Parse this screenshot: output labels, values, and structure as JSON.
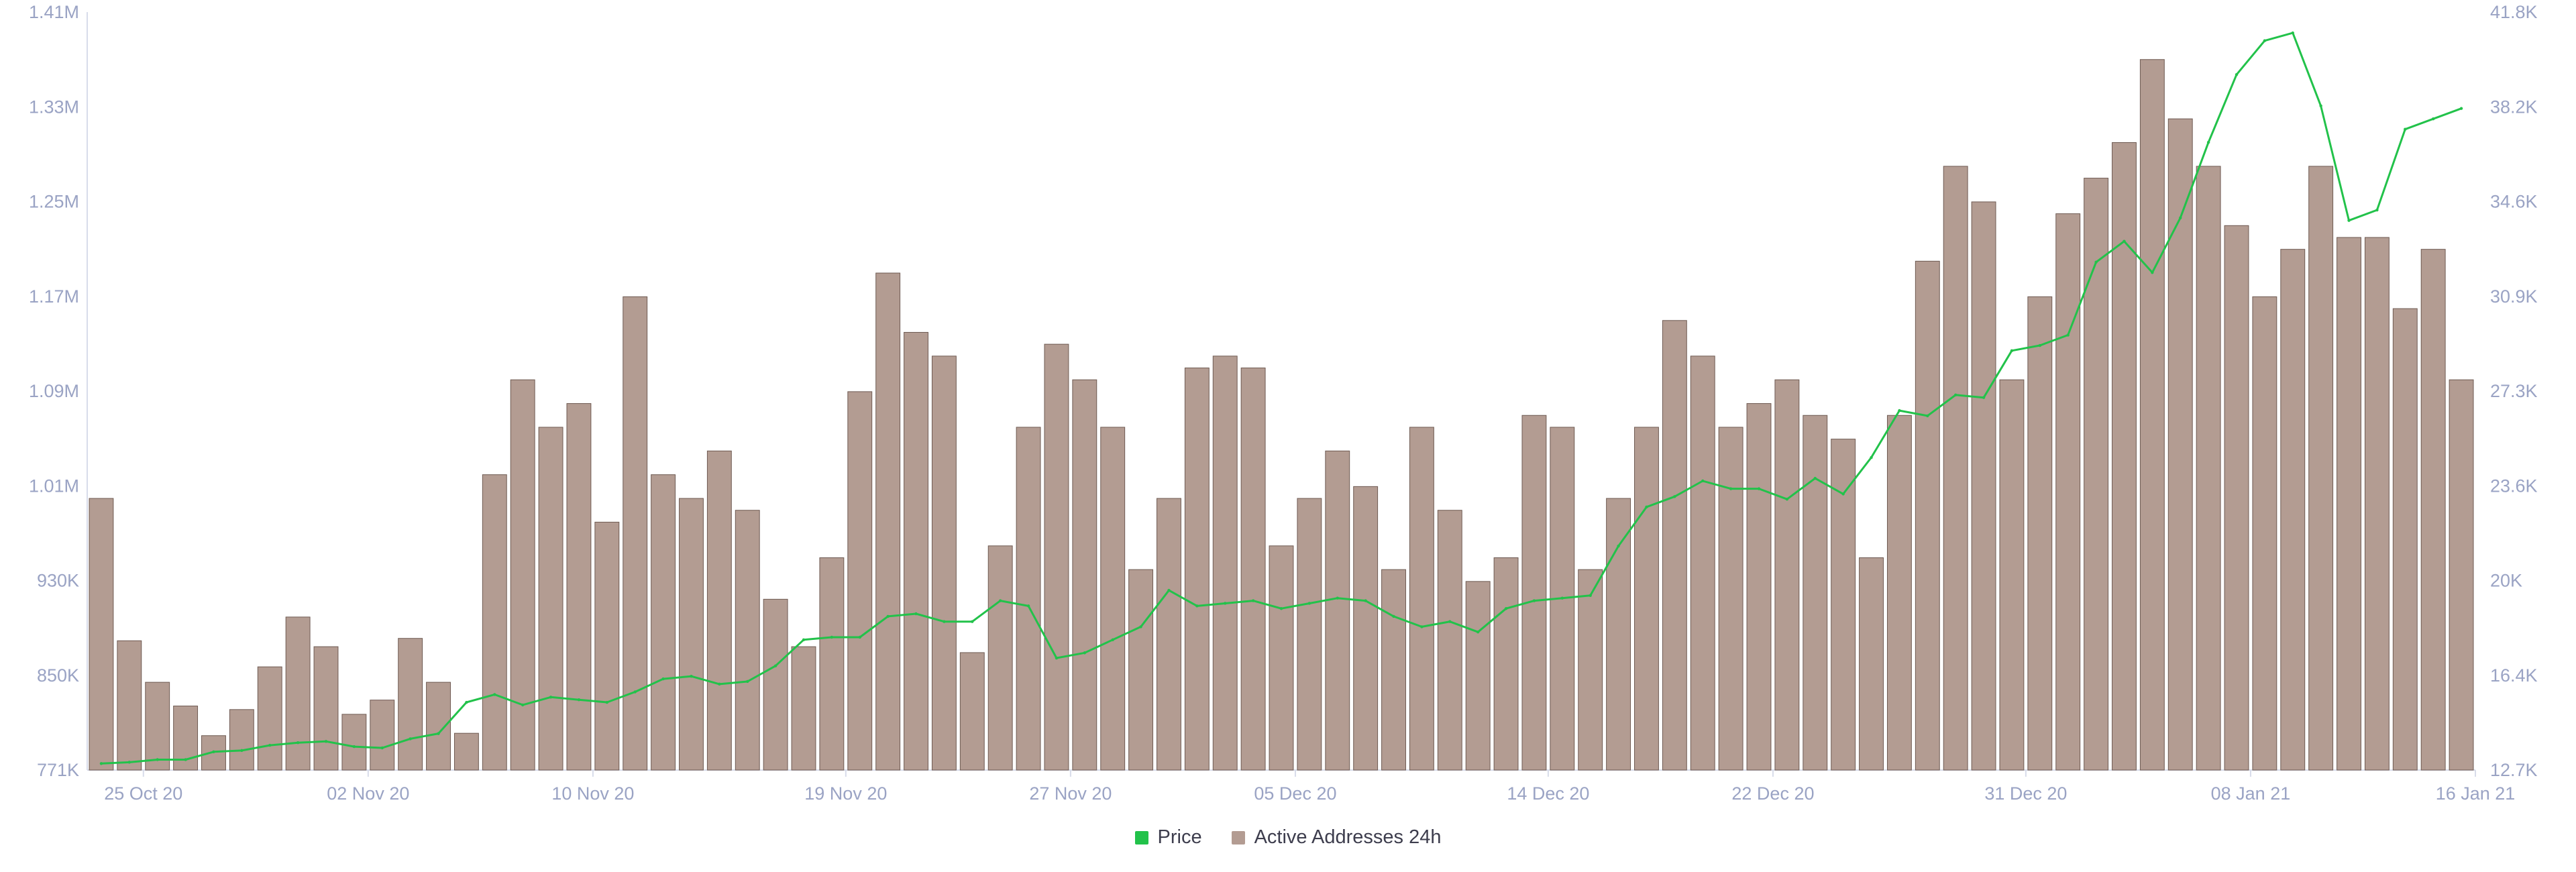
{
  "colors": {
    "price": "#22c24a",
    "active_addresses": "#b39c92",
    "bar_edge": "#6e5a52",
    "axis_text": "#9aa3c4",
    "axis_line": "#d8dcea"
  },
  "legend": {
    "price_label": "Price",
    "active_label": "Active Addresses 24h"
  },
  "chart_data": {
    "type": "bar",
    "title": "",
    "legend_position": "bottom-center",
    "grid": false,
    "x_axis": {
      "range": [
        "2020-10-23",
        "2021-01-16"
      ],
      "ticks": [
        "25 Oct 20",
        "02 Nov 20",
        "10 Nov 20",
        "19 Nov 20",
        "27 Nov 20",
        "05 Dec 20",
        "14 Dec 20",
        "22 Dec 20",
        "31 Dec 20",
        "08 Jan 21",
        "16 Jan 21"
      ]
    },
    "y_left": {
      "label": "",
      "series": "Active Addresses 24h",
      "range": [
        771000,
        1410000
      ],
      "ticks": [
        "1.41M",
        "1.33M",
        "1.25M",
        "1.17M",
        "1.09M",
        "1.01M",
        "930K",
        "850K",
        "771K"
      ]
    },
    "y_right": {
      "label": "",
      "series": "Price",
      "range": [
        12700,
        41800
      ],
      "ticks": [
        "41.8K",
        "38.2K",
        "34.6K",
        "30.9K",
        "27.3K",
        "23.6K",
        "20K",
        "16.4K",
        "12.7K"
      ]
    },
    "series": [
      {
        "name": "Active Addresses 24h",
        "type": "bar",
        "axis": "left",
        "dates": [
          "2020-10-23",
          "2020-10-24",
          "2020-10-25",
          "2020-10-26",
          "2020-10-27",
          "2020-10-28",
          "2020-10-29",
          "2020-10-30",
          "2020-10-31",
          "2020-11-01",
          "2020-11-02",
          "2020-11-03",
          "2020-11-04",
          "2020-11-05",
          "2020-11-06",
          "2020-11-07",
          "2020-11-08",
          "2020-11-09",
          "2020-11-10",
          "2020-11-11",
          "2020-11-12",
          "2020-11-13",
          "2020-11-14",
          "2020-11-15",
          "2020-11-16",
          "2020-11-17",
          "2020-11-18",
          "2020-11-19",
          "2020-11-20",
          "2020-11-21",
          "2020-11-22",
          "2020-11-23",
          "2020-11-24",
          "2020-11-25",
          "2020-11-26",
          "2020-11-27",
          "2020-11-28",
          "2020-11-29",
          "2020-11-30",
          "2020-12-01",
          "2020-12-02",
          "2020-12-03",
          "2020-12-04",
          "2020-12-05",
          "2020-12-06",
          "2020-12-07",
          "2020-12-08",
          "2020-12-09",
          "2020-12-10",
          "2020-12-11",
          "2020-12-12",
          "2020-12-13",
          "2020-12-14",
          "2020-12-15",
          "2020-12-16",
          "2020-12-17",
          "2020-12-18",
          "2020-12-19",
          "2020-12-20",
          "2020-12-21",
          "2020-12-22",
          "2020-12-23",
          "2020-12-24",
          "2020-12-25",
          "2020-12-26",
          "2020-12-27",
          "2020-12-28",
          "2020-12-29",
          "2020-12-30",
          "2020-12-31",
          "2021-01-01",
          "2021-01-02",
          "2021-01-03",
          "2021-01-04",
          "2021-01-05",
          "2021-01-06",
          "2021-01-07",
          "2021-01-08",
          "2021-01-09",
          "2021-01-10",
          "2021-01-11",
          "2021-01-12",
          "2021-01-13",
          "2021-01-14",
          "2021-01-15"
        ],
        "values": [
          1000000,
          880000,
          845000,
          825000,
          800000,
          822000,
          858000,
          900000,
          875000,
          818000,
          830000,
          882000,
          845000,
          802000,
          1020000,
          1100000,
          1060000,
          1080000,
          980000,
          1170000,
          1020000,
          1000000,
          1040000,
          990000,
          915000,
          875000,
          950000,
          1090000,
          1190000,
          1140000,
          1120000,
          870000,
          960000,
          1060000,
          1130000,
          1100000,
          1060000,
          940000,
          1000000,
          1110000,
          1120000,
          1110000,
          960000,
          1000000,
          1040000,
          1010000,
          940000,
          1060000,
          990000,
          930000,
          950000,
          1070000,
          1060000,
          940000,
          1000000,
          1060000,
          1150000,
          1120000,
          1060000,
          1080000,
          1100000,
          1070000,
          1050000,
          950000,
          1070000,
          1200000,
          1280000,
          1250000,
          1100000,
          1170000,
          1240000,
          1270000,
          1300000,
          1370000,
          1320000,
          1280000,
          1230000,
          1170000,
          1210000,
          1280000,
          1220000,
          1220000,
          1160000,
          1210000,
          1100000
        ]
      },
      {
        "name": "Price",
        "type": "line",
        "axis": "right",
        "dates": [
          "2020-10-23",
          "2020-10-24",
          "2020-10-25",
          "2020-10-26",
          "2020-10-27",
          "2020-10-28",
          "2020-10-29",
          "2020-10-30",
          "2020-10-31",
          "2020-11-01",
          "2020-11-02",
          "2020-11-03",
          "2020-11-04",
          "2020-11-05",
          "2020-11-06",
          "2020-11-07",
          "2020-11-08",
          "2020-11-09",
          "2020-11-10",
          "2020-11-11",
          "2020-11-12",
          "2020-11-13",
          "2020-11-14",
          "2020-11-15",
          "2020-11-16",
          "2020-11-17",
          "2020-11-18",
          "2020-11-19",
          "2020-11-20",
          "2020-11-21",
          "2020-11-22",
          "2020-11-23",
          "2020-11-24",
          "2020-11-25",
          "2020-11-26",
          "2020-11-27",
          "2020-11-28",
          "2020-11-29",
          "2020-11-30",
          "2020-12-01",
          "2020-12-02",
          "2020-12-03",
          "2020-12-04",
          "2020-12-05",
          "2020-12-06",
          "2020-12-07",
          "2020-12-08",
          "2020-12-09",
          "2020-12-10",
          "2020-12-11",
          "2020-12-12",
          "2020-12-13",
          "2020-12-14",
          "2020-12-15",
          "2020-12-16",
          "2020-12-17",
          "2020-12-18",
          "2020-12-19",
          "2020-12-20",
          "2020-12-21",
          "2020-12-22",
          "2020-12-23",
          "2020-12-24",
          "2020-12-25",
          "2020-12-26",
          "2020-12-27",
          "2020-12-28",
          "2020-12-29",
          "2020-12-30",
          "2020-12-31",
          "2021-01-01",
          "2021-01-02",
          "2021-01-03",
          "2021-01-04",
          "2021-01-05",
          "2021-01-06",
          "2021-01-07",
          "2021-01-08",
          "2021-01-09",
          "2021-01-10",
          "2021-01-11",
          "2021-01-12",
          "2021-01-13",
          "2021-01-14",
          "2021-01-15"
        ],
        "values": [
          12950,
          13000,
          13100,
          13100,
          13400,
          13450,
          13650,
          13750,
          13800,
          13600,
          13550,
          13900,
          14100,
          15300,
          15600,
          15200,
          15500,
          15400,
          15300,
          15700,
          16200,
          16300,
          16000,
          16100,
          16700,
          17700,
          17800,
          17800,
          18600,
          18700,
          18400,
          18400,
          19200,
          19000,
          17000,
          17200,
          17700,
          18200,
          19600,
          19000,
          19100,
          19200,
          18900,
          19100,
          19300,
          19200,
          18600,
          18200,
          18400,
          18000,
          18900,
          19200,
          19300,
          19400,
          21300,
          22800,
          23200,
          23800,
          23500,
          23500,
          23100,
          23900,
          23300,
          24700,
          26500,
          26300,
          27100,
          27000,
          28800,
          29000,
          29400,
          32200,
          33000,
          31800,
          33900,
          36800,
          39400,
          40700,
          41000,
          38200,
          33800,
          34200,
          37300,
          37700,
          38100
        ]
      }
    ]
  }
}
